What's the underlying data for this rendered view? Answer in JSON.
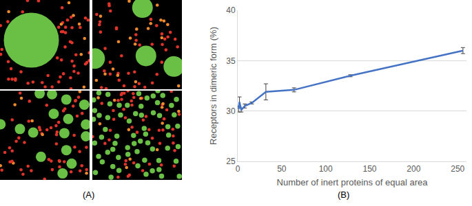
{
  "chart_data": {
    "type": "line",
    "x": [
      1,
      2,
      4,
      8,
      16,
      32,
      64,
      128,
      256
    ],
    "values": [
      30.2,
      30.9,
      30.1,
      30.5,
      30.8,
      31.9,
      32.1,
      33.5,
      36.0
    ],
    "error": [
      0.3,
      0.5,
      0.2,
      0.2,
      0.1,
      0.8,
      0.2,
      0.1,
      0.3
    ],
    "color": "#4472c4",
    "xlabel": "Number of inert proteins of equal area",
    "ylabel": "Receptors in dimeric form (%)",
    "xlim": [
      0,
      260
    ],
    "xticks": [
      0,
      50,
      100,
      150,
      200,
      250
    ],
    "ylim": [
      25,
      40
    ],
    "yticks": [
      25,
      30,
      35,
      40
    ],
    "grid": "y",
    "label": "(B)"
  },
  "panel_a": {
    "label": "(A)",
    "inert_proteins": [
      1,
      4,
      16,
      64
    ]
  }
}
